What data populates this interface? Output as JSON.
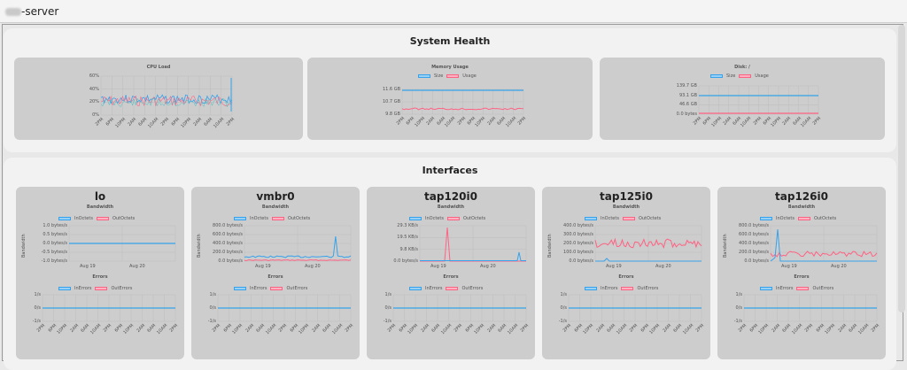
{
  "window": {
    "title": "-server"
  },
  "system_health": {
    "title": "System Health",
    "cpu": {
      "title": "CPU Load",
      "yticks": [
        "60%",
        "40%",
        "20%",
        "0%"
      ],
      "xticks": [
        "2PM",
        "6PM",
        "10PM",
        "2AM",
        "6AM",
        "10AM",
        "2PM",
        "6PM",
        "10PM",
        "2AM",
        "6AM",
        "10AM",
        "2PM"
      ]
    },
    "memory": {
      "title": "Memory Usage",
      "legend": [
        "Size",
        "Usage"
      ],
      "yticks": [
        "11.6 GB",
        "10.7 GB",
        "9.8 GB"
      ],
      "xticks": [
        "2PM",
        "6PM",
        "10PM",
        "2AM",
        "6AM",
        "10AM",
        "2PM",
        "6PM",
        "10PM",
        "2AM",
        "6AM",
        "10AM",
        "2PM"
      ]
    },
    "disk": {
      "title": "Disk: /",
      "legend": [
        "Size",
        "Usage"
      ],
      "yticks": [
        "139.7 GB",
        "93.1 GB",
        "46.6 GB",
        "0.0 bytes"
      ],
      "xticks": [
        "2PM",
        "6PM",
        "10PM",
        "2AM",
        "6AM",
        "10AM",
        "2PM",
        "6PM",
        "10PM",
        "2AM",
        "6AM",
        "10AM",
        "2PM"
      ]
    }
  },
  "interfaces": {
    "title": "Interfaces",
    "bandwidth_label": "Bandwidth",
    "errors_label": "Errors",
    "bw_legend": [
      "InOctets",
      "OutOctets"
    ],
    "err_legend": [
      "InErrors",
      "OutErrors"
    ],
    "axis_title": "Bandwidth",
    "date_ticks": [
      "Aug 19",
      "Aug 20"
    ],
    "err_yticks": [
      "1/s",
      "0/s",
      "-1/s"
    ],
    "err_xticks": [
      "2PM",
      "6PM",
      "10PM",
      "2AM",
      "6AM",
      "10AM",
      "2PM",
      "6PM",
      "10PM",
      "2AM",
      "6AM",
      "10AM",
      "2PM"
    ],
    "items": [
      {
        "name": "lo",
        "yticks": [
          "1.0 bytes/s",
          "0.5 bytes/s",
          "0.0 bytes/s",
          "-0.5 bytes/s",
          "-1.0 bytes/s"
        ]
      },
      {
        "name": "vmbr0",
        "yticks": [
          "800.0 bytes/s",
          "600.0 bytes/s",
          "400.0 bytes/s",
          "200.0 bytes/s",
          "0.0 bytes/s"
        ]
      },
      {
        "name": "tap120i0",
        "yticks": [
          "29.3 KB/s",
          "19.5 KB/s",
          "9.8 KB/s",
          "0.0 bytes/s"
        ]
      },
      {
        "name": "tap125i0",
        "yticks": [
          "400.0 bytes/s",
          "300.0 bytes/s",
          "200.0 bytes/s",
          "100.0 bytes/s",
          "0.0 bytes/s"
        ]
      },
      {
        "name": "tap126i0",
        "yticks": [
          "800.0 bytes/s",
          "600.0 bytes/s",
          "400.0 bytes/s",
          "200.0 bytes/s",
          "0.0 bytes/s"
        ]
      }
    ]
  },
  "colors": {
    "blue": "#36a2eb",
    "red": "#ff6384",
    "card": "#cdcdcd",
    "panel": "#f2f2f2"
  }
}
